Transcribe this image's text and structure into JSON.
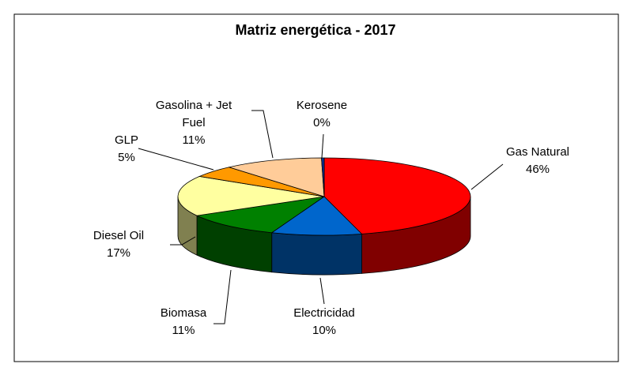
{
  "chart_data": {
    "type": "pie3d",
    "title": "Matriz energética - 2017",
    "categories": [
      "Gas Natural",
      "Electricidad",
      "Biomasa",
      "Diesel Oil",
      "GLP",
      "Gasolina + Jet Fuel",
      "Kerosene"
    ],
    "values": [
      46,
      10,
      11,
      17,
      5,
      11,
      0.3
    ],
    "value_labels": [
      "46%",
      "10%",
      "11%",
      "17%",
      "5%",
      "11%",
      "0%"
    ],
    "colors": [
      "#ff0000",
      "#0066cc",
      "#008000",
      "#ffffa0",
      "#ff9900",
      "#ffcc99",
      "#003399"
    ]
  }
}
